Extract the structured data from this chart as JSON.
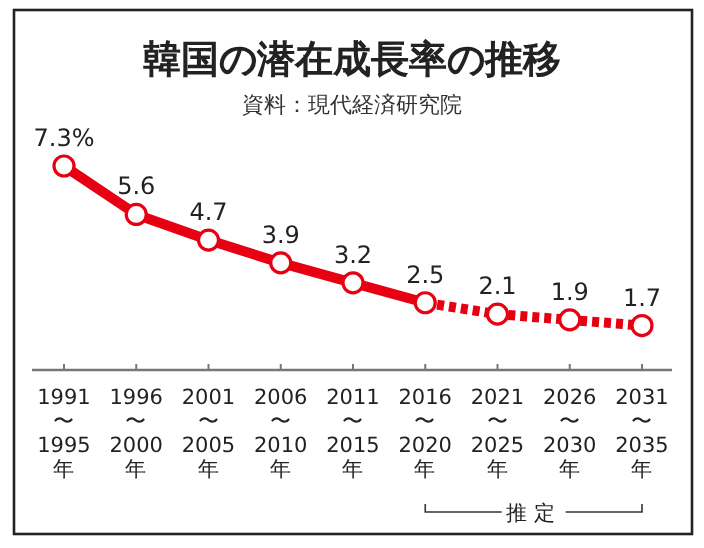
{
  "chart_data": {
    "type": "line",
    "title": "韓国の潜在成長率の推移",
    "subtitle": "資料：現代経済研究院",
    "categories": [
      "1991\n〜\n1995\n年",
      "1996\n〜\n2000\n年",
      "2001\n〜\n2005\n年",
      "2006\n〜\n2010\n年",
      "2011\n〜\n2015\n年",
      "2016\n〜\n2020\n年",
      "2021\n〜\n2025\n年",
      "2026\n〜\n2030\n年",
      "2031\n〜\n2035\n年"
    ],
    "series": [
      {
        "color": "#e60012",
        "line_style": "solid",
        "values": [
          7.3,
          5.6,
          4.7,
          3.9,
          3.2,
          2.5,
          null,
          null,
          null
        ],
        "value_labels": [
          "7.3%",
          "5.6",
          "4.7",
          "3.9",
          "3.2",
          "2.5",
          null,
          null,
          null
        ]
      },
      {
        "color": "#e60012",
        "line_style": "dotted",
        "values": [
          null,
          null,
          null,
          null,
          null,
          2.5,
          2.1,
          1.9,
          1.7
        ],
        "value_labels": [
          null,
          null,
          null,
          null,
          null,
          null,
          "2.1",
          "1.9",
          "1.7"
        ]
      }
    ],
    "marker": "circle",
    "annotations": [
      "推定"
    ]
  }
}
